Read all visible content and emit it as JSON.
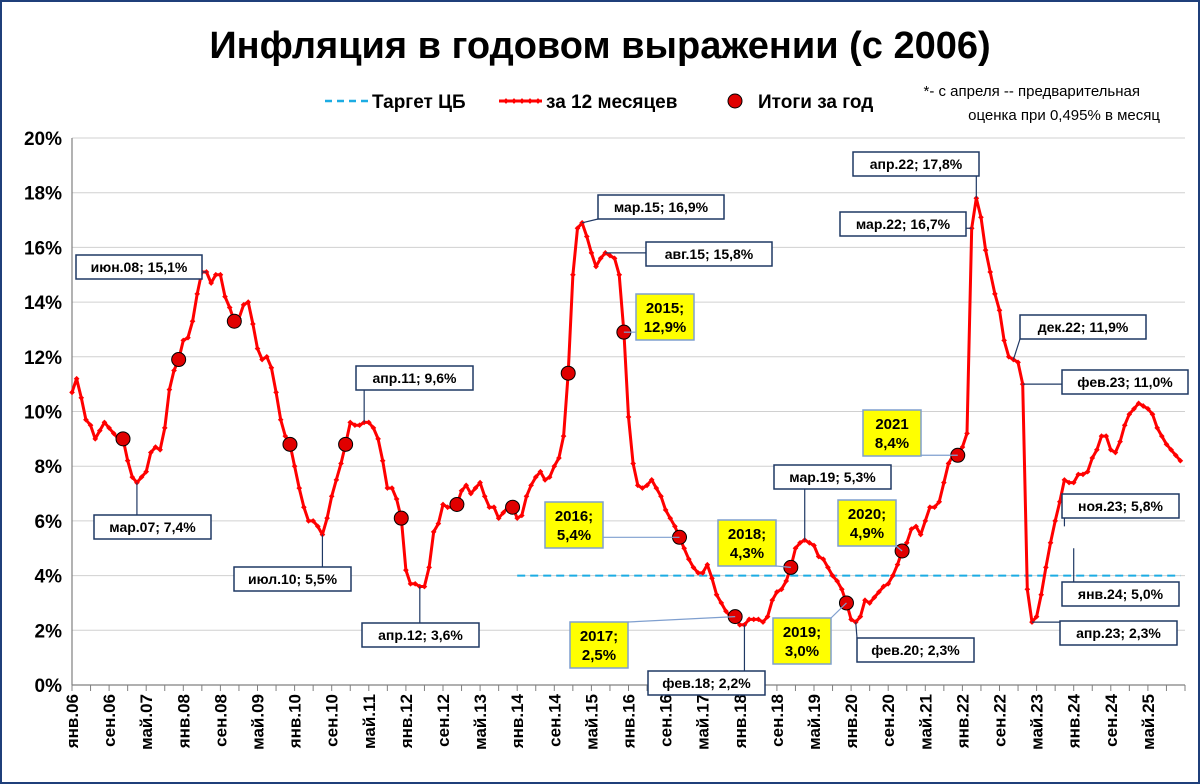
{
  "chart_data": {
    "type": "line",
    "title": "Инфляция в годовом выражении (с 2006)",
    "note": [
      "*- с апреля -- предварительная",
      "оценка при 0,495% в месяц"
    ],
    "legend": {
      "placement": "top",
      "items": [
        {
          "label": "Таргет ЦБ",
          "style": "dashed",
          "color": "#1cace3"
        },
        {
          "label": "за 12 месяцев",
          "style": "line-markers",
          "color": "#ff0000"
        },
        {
          "label": "Итоги за год",
          "style": "circle",
          "color": "#e00000"
        }
      ]
    },
    "ylim": [
      0,
      20
    ],
    "ytick_labels": [
      "0%",
      "2%",
      "4%",
      "6%",
      "8%",
      "10%",
      "12%",
      "14%",
      "16%",
      "18%",
      "20%"
    ],
    "x_start": "янв.06",
    "x_end": "дек.25",
    "xtick_labels": [
      "янв.06",
      "сен.06",
      "май.07",
      "янв.08",
      "сен.08",
      "май.09",
      "янв.10",
      "сен.10",
      "май.11",
      "янв.12",
      "сен.12",
      "май.13",
      "янв.14",
      "сен.14",
      "май.15",
      "янв.16",
      "сен.16",
      "май.17",
      "янв.18",
      "сен.18",
      "май.19",
      "янв.20",
      "сен.20",
      "май.21",
      "янв.22",
      "сен.22",
      "май.23",
      "янв.24",
      "сен.24",
      "май.25"
    ],
    "grid": "horizontal",
    "series": [
      {
        "name": "за 12 месяцев",
        "color": "#ff0000",
        "x_start": "янв.06",
        "values": [
          10.7,
          11.2,
          10.5,
          9.7,
          9.5,
          9.0,
          9.3,
          9.6,
          9.4,
          9.2,
          9.0,
          9.0,
          8.2,
          7.6,
          7.4,
          7.6,
          7.8,
          8.5,
          8.7,
          8.6,
          9.4,
          10.8,
          11.5,
          11.9,
          12.6,
          12.7,
          13.3,
          14.3,
          15.1,
          15.1,
          14.7,
          15.0,
          15.0,
          14.2,
          13.8,
          13.3,
          13.4,
          13.9,
          14.0,
          13.2,
          12.3,
          11.9,
          12.0,
          11.6,
          10.7,
          9.7,
          9.1,
          8.8,
          8.0,
          7.2,
          6.5,
          6.0,
          6.0,
          5.8,
          5.5,
          6.1,
          6.9,
          7.5,
          8.1,
          8.8,
          9.6,
          9.5,
          9.5,
          9.6,
          9.6,
          9.4,
          9.0,
          8.2,
          7.2,
          7.2,
          6.8,
          6.1,
          4.2,
          3.7,
          3.7,
          3.6,
          3.6,
          4.3,
          5.6,
          5.9,
          6.6,
          6.5,
          6.5,
          6.6,
          7.1,
          7.3,
          7.0,
          7.2,
          7.4,
          6.9,
          6.5,
          6.5,
          6.1,
          6.3,
          6.5,
          6.5,
          6.1,
          6.2,
          6.9,
          7.3,
          7.6,
          7.8,
          7.5,
          7.6,
          8.0,
          8.3,
          9.1,
          11.4,
          15.0,
          16.7,
          16.9,
          16.4,
          15.8,
          15.3,
          15.6,
          15.8,
          15.7,
          15.6,
          15.0,
          12.9,
          9.8,
          8.1,
          7.3,
          7.2,
          7.3,
          7.5,
          7.2,
          6.9,
          6.4,
          6.1,
          5.8,
          5.4,
          5.0,
          4.6,
          4.3,
          4.1,
          4.1,
          4.4,
          3.9,
          3.3,
          3.0,
          2.7,
          2.5,
          2.5,
          2.2,
          2.2,
          2.4,
          2.4,
          2.4,
          2.3,
          2.5,
          3.1,
          3.4,
          3.5,
          3.8,
          4.3,
          5.0,
          5.2,
          5.3,
          5.2,
          5.1,
          4.7,
          4.6,
          4.3,
          4.0,
          3.8,
          3.5,
          3.0,
          2.4,
          2.3,
          2.5,
          3.1,
          3.0,
          3.2,
          3.4,
          3.6,
          3.7,
          4.0,
          4.4,
          4.9,
          5.2,
          5.7,
          5.8,
          5.5,
          6.0,
          6.5,
          6.5,
          6.7,
          7.4,
          8.1,
          8.4,
          8.4,
          8.7,
          9.2,
          16.7,
          17.8,
          17.1,
          15.9,
          15.1,
          14.3,
          13.7,
          12.6,
          12.0,
          11.9,
          11.8,
          11.0,
          3.5,
          2.3,
          2.5,
          3.3,
          4.3,
          5.2,
          6.0,
          6.7,
          7.5,
          7.4,
          7.4,
          7.7,
          7.7,
          7.8,
          8.3,
          8.6,
          9.1,
          9.1,
          8.6,
          8.5,
          8.9,
          9.5,
          9.9,
          10.1,
          10.3,
          10.2,
          10.1,
          9.9,
          9.4,
          9.1,
          8.8,
          8.6,
          8.4,
          8.2
        ],
        "values_note": "monthly readings as drawn on the chart"
      },
      {
        "name": "Таргет ЦБ",
        "color": "#1cace3",
        "from": "янв.14",
        "to": "дек.25",
        "value": 4.0
      },
      {
        "name": "Итоги за год",
        "color": "#e00000",
        "points": [
          {
            "year": 2006,
            "value": 9.0
          },
          {
            "year": 2007,
            "value": 11.9
          },
          {
            "year": 2008,
            "value": 13.3
          },
          {
            "year": 2009,
            "value": 8.8
          },
          {
            "year": 2010,
            "value": 8.8
          },
          {
            "year": 2011,
            "value": 6.1
          },
          {
            "year": 2012,
            "value": 6.6
          },
          {
            "year": 2013,
            "value": 6.5
          },
          {
            "year": 2014,
            "value": 11.4
          },
          {
            "year": 2015,
            "value": 12.9
          },
          {
            "year": 2016,
            "value": 5.4
          },
          {
            "year": 2017,
            "value": 2.5
          },
          {
            "year": 2018,
            "value": 4.3
          },
          {
            "year": 2019,
            "value": 3.0
          },
          {
            "year": 2020,
            "value": 4.9
          },
          {
            "year": 2021,
            "value": 8.4
          }
        ]
      }
    ],
    "annotations": [
      {
        "text": "июн.08; 15,1%",
        "x": "июн.08",
        "y": 15.1,
        "style": "white"
      },
      {
        "text": "мар.07; 7,4%",
        "x": "мар.07",
        "y": 7.4,
        "style": "white"
      },
      {
        "text": "июл.10; 5,5%",
        "x": "июл.10",
        "y": 5.5,
        "style": "white"
      },
      {
        "text": "апр.11; 9,6%",
        "x": "апр.11",
        "y": 9.6,
        "style": "white"
      },
      {
        "text": "апр.12; 3,6%",
        "x": "апр.12",
        "y": 3.6,
        "style": "white"
      },
      {
        "text": "мар.15; 16,9%",
        "x": "мар.15",
        "y": 16.9,
        "style": "white"
      },
      {
        "text": "авг.15; 15,8%",
        "x": "авг.15",
        "y": 15.8,
        "style": "white"
      },
      {
        "text": "фев.18; 2,2%",
        "x": "фев.18",
        "y": 2.2,
        "style": "white"
      },
      {
        "text": "мар.19; 5,3%",
        "x": "мар.19",
        "y": 5.3,
        "style": "white"
      },
      {
        "text": "фев.20; 2,3%",
        "x": "фев.20",
        "y": 2.3,
        "style": "white"
      },
      {
        "text": "апр.22; 17,8%",
        "x": "апр.22",
        "y": 17.8,
        "style": "white"
      },
      {
        "text": "мар.22; 16,7%",
        "x": "мар.22",
        "y": 16.7,
        "style": "white"
      },
      {
        "text": "дек.22; 11,9%",
        "x": "дек.22",
        "y": 11.9,
        "style": "white"
      },
      {
        "text": "фев.23; 11,0%",
        "x": "фев.23",
        "y": 11.0,
        "style": "white"
      },
      {
        "text": "апр.23; 2,3%",
        "x": "апр.23",
        "y": 2.3,
        "style": "white"
      },
      {
        "text": "ноя.23; 5,8%",
        "x": "ноя.23",
        "y": 5.8,
        "style": "white"
      },
      {
        "text": "янв.24; 5,0%",
        "x": "янв.24",
        "y": 5.0,
        "style": "white"
      },
      {
        "text": [
          "2015;",
          "12,9%"
        ],
        "x": "дек.15",
        "y": 12.9,
        "style": "yellow"
      },
      {
        "text": [
          "2016;",
          "5,4%"
        ],
        "x": "дек.16",
        "y": 5.4,
        "style": "yellow"
      },
      {
        "text": [
          "2017;",
          "2,5%"
        ],
        "x": "дек.17",
        "y": 2.5,
        "style": "yellow"
      },
      {
        "text": [
          "2018;",
          "4,3%"
        ],
        "x": "дек.18",
        "y": 4.3,
        "style": "yellow"
      },
      {
        "text": [
          "2019;",
          "3,0%"
        ],
        "x": "дек.19",
        "y": 3.0,
        "style": "yellow"
      },
      {
        "text": [
          "2020;",
          "4,9%"
        ],
        "x": "дек.20",
        "y": 4.9,
        "style": "yellow"
      },
      {
        "text": [
          "2021",
          "8,4%"
        ],
        "x": "дек.21",
        "y": 8.4,
        "style": "yellow"
      }
    ]
  }
}
